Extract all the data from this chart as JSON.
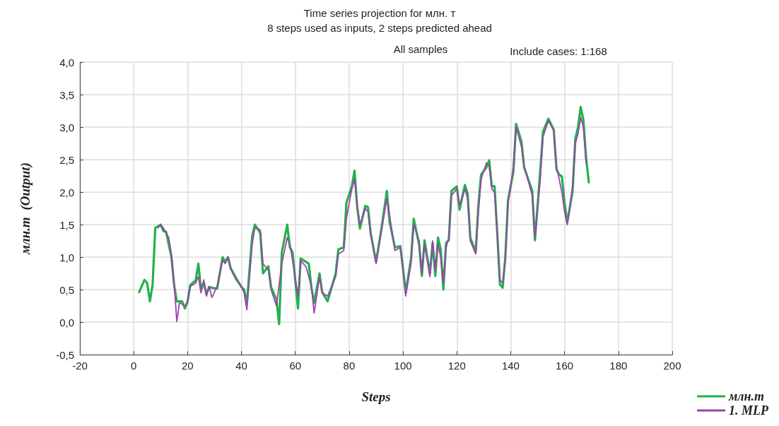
{
  "chart_data": {
    "type": "line",
    "title": "Time series projection for млн. т",
    "subtitle": "8 steps used as inputs, 2 steps predicted ahead",
    "annotations": [
      "All samples",
      "Include cases: 1:168"
    ],
    "xlabel": "Steps",
    "ylabel": "млн.т  (Output)",
    "xlim": [
      -20,
      200
    ],
    "xticks": [
      -20,
      0,
      20,
      40,
      60,
      80,
      100,
      120,
      140,
      160,
      180,
      200
    ],
    "ylim": [
      -0.5,
      4
    ],
    "yticks": [
      {
        "value": -0.5,
        "label": "-0,5"
      },
      {
        "value": 0,
        "label": "0,0"
      },
      {
        "value": 0.5,
        "label": "0,5"
      },
      {
        "value": 1,
        "label": "1,0"
      },
      {
        "value": 1.5,
        "label": "1,5"
      },
      {
        "value": 2,
        "label": "2,0"
      },
      {
        "value": 2.5,
        "label": "2,5"
      },
      {
        "value": 3,
        "label": "3,0"
      },
      {
        "value": 3.5,
        "label": "3,5"
      },
      {
        "value": 4,
        "label": "4,0"
      }
    ],
    "grid": true,
    "legend": "bottom right",
    "marker": "none",
    "line_style": "solid",
    "series": [
      {
        "name": "млн.т",
        "color": "#22b14c",
        "x": [
          2,
          4,
          5,
          6,
          7,
          8,
          10,
          11,
          12,
          14,
          15,
          16,
          18,
          19,
          20,
          21,
          22,
          23,
          24,
          25,
          26,
          27,
          28,
          30,
          31,
          33,
          34,
          35,
          36,
          38,
          40,
          41,
          42,
          44,
          45,
          47,
          48,
          50,
          51,
          53,
          54,
          55,
          57,
          58,
          59,
          61,
          62,
          65,
          66,
          67,
          69,
          70,
          72,
          75,
          76,
          78,
          79,
          81,
          82,
          83,
          84,
          86,
          87,
          88,
          90,
          92,
          94,
          95,
          97,
          99,
          100,
          101,
          103,
          104,
          106,
          107,
          108,
          110,
          111,
          112,
          113,
          114,
          115,
          116,
          117,
          118,
          120,
          121,
          123,
          124,
          125,
          127,
          128,
          129,
          131,
          132,
          133,
          134,
          135,
          136,
          137,
          138,
          139,
          141,
          142,
          144,
          145,
          148,
          149,
          151,
          152,
          154,
          156,
          157,
          158,
          159,
          160,
          161,
          163,
          164,
          165,
          166,
          167,
          168,
          169
        ],
        "values": [
          0.46,
          0.65,
          0.6,
          0.32,
          0.57,
          1.45,
          1.5,
          1.4,
          1.39,
          1.0,
          0.57,
          0.32,
          0.32,
          0.21,
          0.32,
          0.57,
          0.61,
          0.64,
          0.9,
          0.5,
          0.61,
          0.43,
          0.54,
          0.52,
          0.52,
          1.0,
          0.93,
          1.0,
          0.83,
          0.68,
          0.54,
          0.5,
          0.28,
          1.33,
          1.5,
          1.37,
          0.75,
          0.86,
          0.54,
          0.35,
          -0.03,
          1.07,
          1.5,
          1.15,
          1.07,
          0.21,
          0.98,
          0.9,
          0.53,
          0.3,
          0.75,
          0.46,
          0.32,
          0.75,
          1.12,
          1.15,
          1.84,
          2.09,
          2.33,
          1.77,
          1.44,
          1.79,
          1.77,
          1.37,
          0.93,
          1.44,
          2.02,
          1.55,
          1.15,
          1.17,
          0.82,
          0.46,
          0.98,
          1.59,
          1.19,
          0.71,
          1.26,
          0.75,
          1.22,
          0.71,
          1.3,
          1.12,
          0.5,
          1.22,
          1.26,
          2.02,
          2.09,
          1.73,
          2.11,
          1.98,
          1.3,
          1.08,
          1.8,
          2.27,
          2.38,
          2.49,
          2.09,
          2.09,
          1.37,
          0.58,
          0.53,
          1.0,
          1.88,
          2.31,
          3.05,
          2.78,
          2.38,
          2.02,
          1.26,
          2.35,
          2.93,
          3.13,
          2.96,
          2.35,
          2.27,
          2.24,
          1.84,
          1.53,
          2.02,
          2.82,
          3.0,
          3.31,
          3.11,
          2.53,
          2.15
        ]
      },
      {
        "name": "1. MLP",
        "color": "#a040b0",
        "x": [
          9,
          10,
          11,
          12,
          13,
          14,
          15,
          16,
          17,
          19,
          20,
          21,
          23,
          24,
          25,
          26,
          27,
          28,
          29,
          31,
          33,
          34,
          35,
          36,
          38,
          40,
          41,
          42,
          44,
          45,
          47,
          48,
          50,
          51,
          53,
          55,
          57,
          58,
          59,
          61,
          62,
          64,
          66,
          67,
          69,
          70,
          72,
          75,
          76,
          78,
          79,
          81,
          82,
          83,
          84,
          86,
          87,
          88,
          90,
          92,
          94,
          95,
          97,
          99,
          100,
          101,
          103,
          104,
          106,
          107,
          108,
          110,
          111,
          112,
          113,
          114,
          115,
          116,
          117,
          118,
          120,
          121,
          123,
          124,
          125,
          127,
          128,
          129,
          131,
          132,
          133,
          134,
          135,
          136,
          137,
          138,
          139,
          141,
          142,
          144,
          145,
          148,
          149,
          151,
          152,
          154,
          156,
          157,
          158,
          159,
          160,
          161,
          163,
          164,
          165,
          166,
          167,
          168
        ],
        "values": [
          1.45,
          1.5,
          1.45,
          1.38,
          1.3,
          1.05,
          0.6,
          0.01,
          0.3,
          0.25,
          0.3,
          0.55,
          0.6,
          0.7,
          0.45,
          0.65,
          0.4,
          0.55,
          0.38,
          0.55,
          0.95,
          0.9,
          1.0,
          0.82,
          0.65,
          0.55,
          0.45,
          0.19,
          1.2,
          1.45,
          1.42,
          0.9,
          0.8,
          0.5,
          0.25,
          0.9,
          1.3,
          1.2,
          0.95,
          0.4,
          0.95,
          0.85,
          0.55,
          0.14,
          0.7,
          0.45,
          0.4,
          0.7,
          1.05,
          1.1,
          1.6,
          2.05,
          2.2,
          1.8,
          1.5,
          1.75,
          1.7,
          1.35,
          0.9,
          1.4,
          1.9,
          1.65,
          1.1,
          1.15,
          0.85,
          0.4,
          0.9,
          1.5,
          1.25,
          0.75,
          1.2,
          0.7,
          1.25,
          0.8,
          1.2,
          1.0,
          0.6,
          1.15,
          1.3,
          1.95,
          2.05,
          1.8,
          2.05,
          1.9,
          1.25,
          1.05,
          1.7,
          2.2,
          2.45,
          2.4,
          2.05,
          2.0,
          1.4,
          0.65,
          0.6,
          0.95,
          1.8,
          2.4,
          3.0,
          2.7,
          2.4,
          1.95,
          1.3,
          2.2,
          2.85,
          3.1,
          2.95,
          2.4,
          2.2,
          2.0,
          1.7,
          1.5,
          2.1,
          2.75,
          2.9,
          3.15,
          3.0,
          2.45
        ]
      }
    ]
  }
}
